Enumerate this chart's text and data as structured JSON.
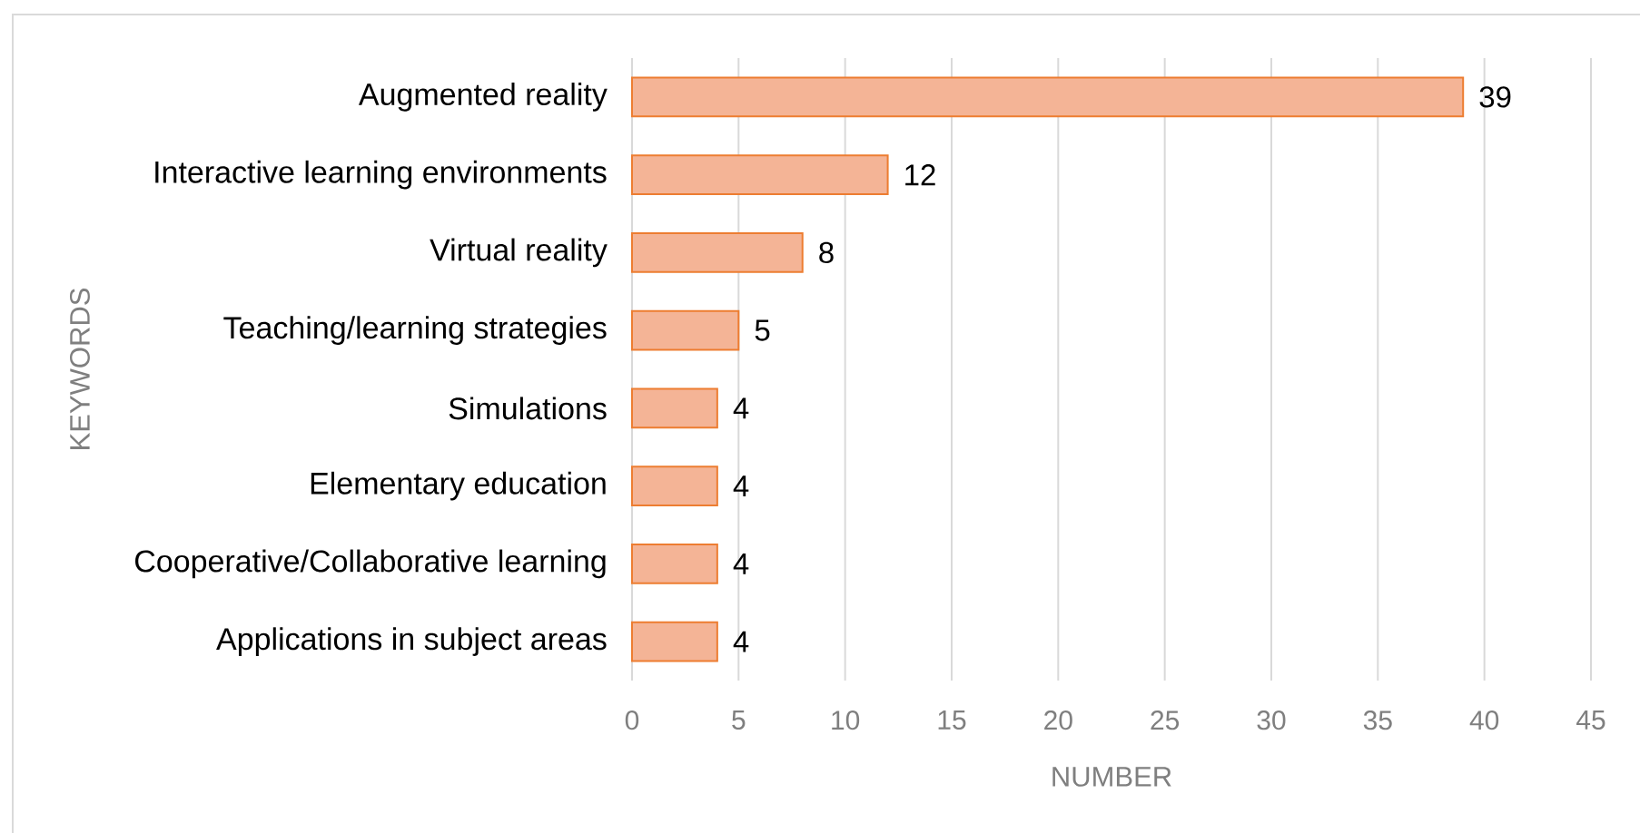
{
  "chart_data": {
    "type": "bar",
    "orientation": "horizontal",
    "categories": [
      "Augmented reality",
      "Interactive learning environments",
      "Virtual reality",
      "Teaching/learning strategies",
      "Simulations",
      "Elementary education",
      "Cooperative/Collaborative learning",
      "Applications in subject areas"
    ],
    "values": [
      39,
      12,
      8,
      5,
      4,
      4,
      4,
      4
    ],
    "color": "#f4b496",
    "xlim": [
      0,
      45
    ],
    "xticks": [
      0,
      5,
      10,
      15,
      20,
      25,
      30,
      35,
      40,
      45
    ],
    "xlabel": "NUMBER",
    "ylabel": "KEYWORDS",
    "grid": "x",
    "data_labels": true
  }
}
